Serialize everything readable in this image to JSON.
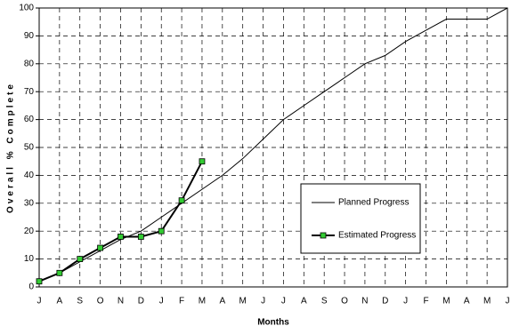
{
  "chart_data": {
    "type": "line",
    "x_label": "Months",
    "y_label": "Overall % Complete",
    "categories": [
      "J",
      "A",
      "S",
      "O",
      "N",
      "D",
      "J",
      "F",
      "M",
      "A",
      "M",
      "J",
      "J",
      "A",
      "S",
      "O",
      "N",
      "D",
      "J",
      "F",
      "M",
      "A",
      "M",
      "J"
    ],
    "series": [
      {
        "name": "Planned Progress",
        "color": "#000000",
        "marker": false,
        "values": [
          2,
          5,
          9,
          13,
          17,
          20,
          25,
          30,
          35,
          40,
          46,
          53,
          60,
          65,
          70,
          75,
          80,
          83,
          88,
          92,
          96,
          96,
          96,
          100
        ]
      },
      {
        "name": "Estimated Progress",
        "color": "#000000",
        "marker": true,
        "marker_color": "#33cc33",
        "values": [
          2,
          5,
          10,
          14,
          18,
          18,
          20,
          31,
          45,
          null,
          null,
          null,
          null,
          null,
          null,
          null,
          null,
          null,
          null,
          null,
          null,
          null,
          null,
          null
        ]
      }
    ],
    "ylim": [
      0,
      100
    ],
    "yticks": [
      0,
      10,
      20,
      30,
      40,
      50,
      60,
      70,
      80,
      90,
      100
    ],
    "grid": true
  }
}
